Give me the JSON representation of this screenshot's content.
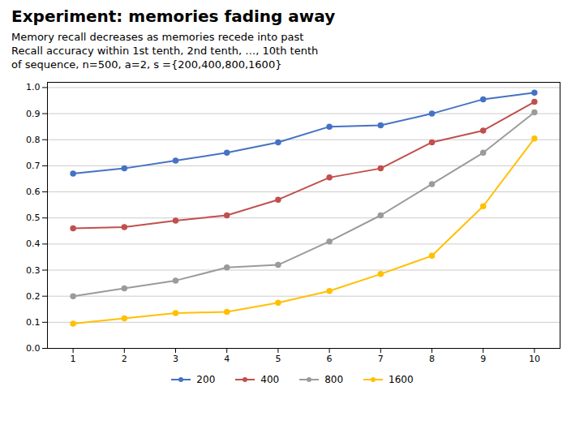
{
  "chart_data": {
    "type": "line",
    "title": "Experiment: memories fading away",
    "subtitle": [
      "Memory recall decreases as memories recede into past",
      "Recall accuracy within 1st tenth, 2nd tenth, …, 10th tenth",
      "of sequence, n=500,  a=2,  s ={200,400,800,1600}"
    ],
    "x": [
      1,
      2,
      3,
      4,
      5,
      6,
      7,
      8,
      9,
      10
    ],
    "series": [
      {
        "name": "200",
        "color": "#4472C4",
        "values": [
          0.67,
          0.69,
          0.72,
          0.75,
          0.79,
          0.85,
          0.855,
          0.9,
          0.955,
          0.98
        ]
      },
      {
        "name": "400",
        "color": "#C0504D",
        "values": [
          0.46,
          0.465,
          0.49,
          0.51,
          0.57,
          0.655,
          0.69,
          0.79,
          0.835,
          0.945
        ]
      },
      {
        "name": "800",
        "color": "#9B9B9B",
        "values": [
          0.2,
          0.23,
          0.26,
          0.31,
          0.32,
          0.41,
          0.51,
          0.63,
          0.75,
          0.905
        ]
      },
      {
        "name": "1600",
        "color": "#FFC000",
        "values": [
          0.095,
          0.115,
          0.135,
          0.14,
          0.175,
          0.22,
          0.285,
          0.355,
          0.545,
          0.805
        ]
      }
    ],
    "xlim": [
      0.5,
      10.5
    ],
    "ylim": [
      0,
      1.02
    ],
    "xticks": [
      1,
      2,
      3,
      4,
      5,
      6,
      7,
      8,
      9,
      10
    ],
    "yticks": [
      {
        "value": 0,
        "label": "0.0"
      },
      0.1,
      0.2,
      0.3,
      0.4,
      0.5,
      0.6,
      0.7,
      0.8,
      0.9,
      {
        "value": 1,
        "label": "1.0"
      }
    ],
    "grid": "y",
    "legend": "bottom",
    "marker": "circle"
  }
}
